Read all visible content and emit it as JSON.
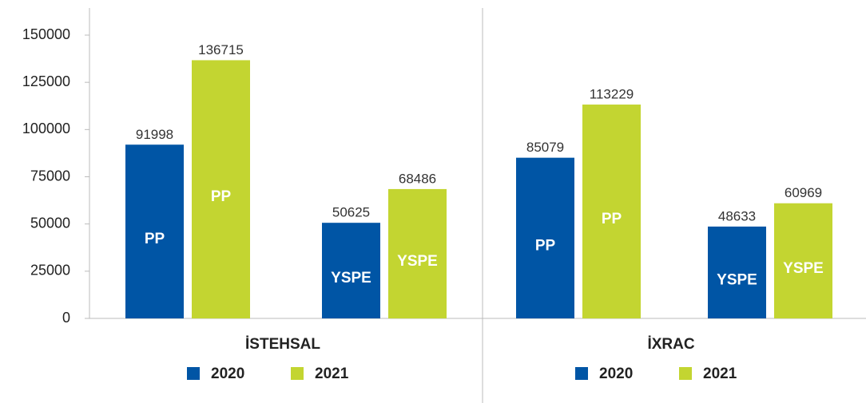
{
  "chart_data": {
    "type": "bar",
    "ylim": [
      0,
      150000
    ],
    "yticks": [
      0,
      25000,
      50000,
      75000,
      100000,
      125000,
      150000
    ],
    "panels": [
      {
        "title": "İSTEHSAL",
        "categories": [
          "PP",
          "YSPE"
        ],
        "series": [
          {
            "name": "2020",
            "color": "#0055a5",
            "values": [
              91998,
              50625
            ]
          },
          {
            "name": "2021",
            "color": "#c3d531",
            "values": [
              136715,
              68486
            ]
          }
        ]
      },
      {
        "title": "İXRAC",
        "categories": [
          "PP",
          "YSPE"
        ],
        "series": [
          {
            "name": "2020",
            "color": "#0055a5",
            "values": [
              85079,
              48633
            ]
          },
          {
            "name": "2021",
            "color": "#c3d531",
            "values": [
              113229,
              60969
            ]
          }
        ]
      }
    ]
  }
}
